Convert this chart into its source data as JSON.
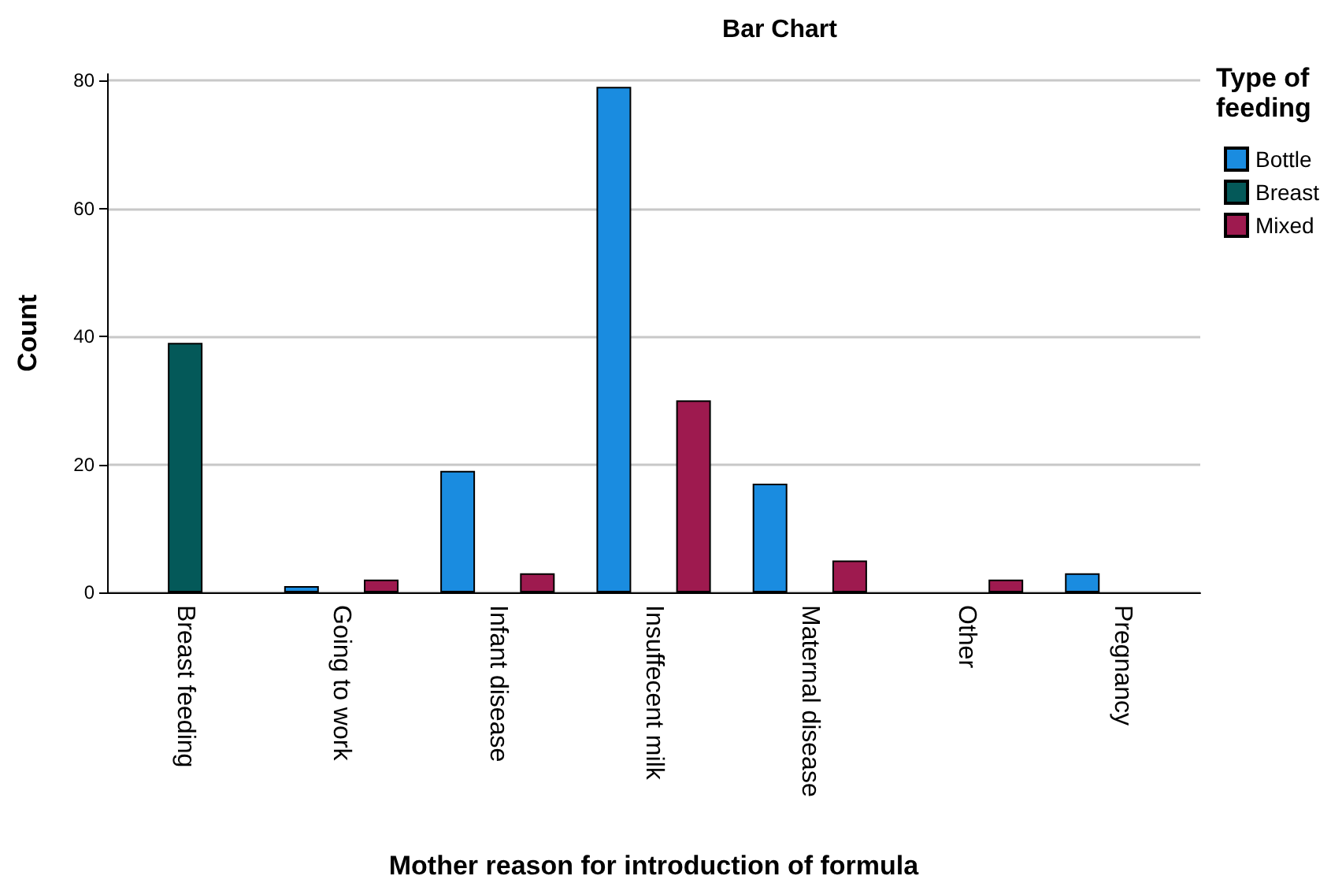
{
  "chart_data": {
    "type": "bar",
    "title": "Bar Chart",
    "xlabel": "Mother reason for introduction of formula",
    "ylabel": "Count",
    "legend_title": "Type of feeding",
    "categories": [
      "Breast feeding",
      "Going to work",
      "Infant disease",
      "Insuffecent milk",
      "Maternal disease",
      "Other",
      "Pregnancy"
    ],
    "series": [
      {
        "name": "Bottle",
        "color": "#1a8ce0",
        "values": [
          null,
          1,
          19,
          79,
          17,
          null,
          3
        ]
      },
      {
        "name": "Breast",
        "color": "#045959",
        "values": [
          39,
          null,
          null,
          null,
          null,
          null,
          null
        ]
      },
      {
        "name": "Mixed",
        "color": "#9e1a4f",
        "values": [
          null,
          2,
          3,
          30,
          5,
          2,
          null
        ]
      }
    ],
    "ylim": [
      0,
      81
    ],
    "yticks": [
      0,
      20,
      40,
      60,
      80
    ],
    "grid": "y",
    "legend": "top right"
  }
}
